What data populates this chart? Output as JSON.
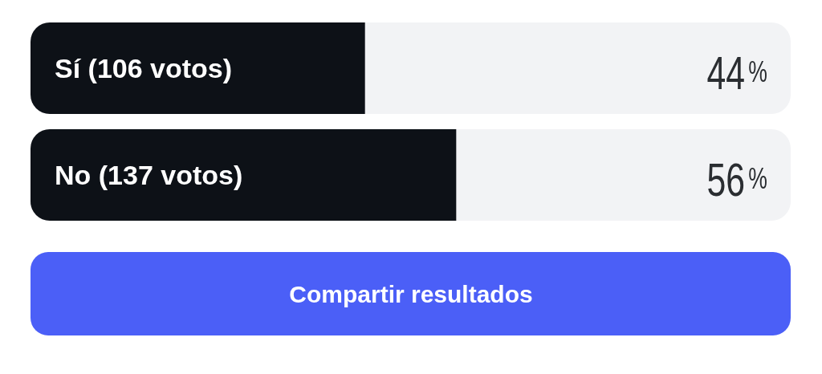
{
  "chart_data": {
    "type": "bar",
    "orientation": "horizontal",
    "categories": [
      "Sí (106 votos)",
      "No (137 votos)"
    ],
    "values": [
      44,
      56
    ],
    "color": "#0d1117",
    "value_labels": [
      "44%",
      "56%"
    ],
    "xlim": [
      0,
      100
    ],
    "tick_labels": "y",
    "annotations": [
      "Compartir resultados"
    ]
  }
}
